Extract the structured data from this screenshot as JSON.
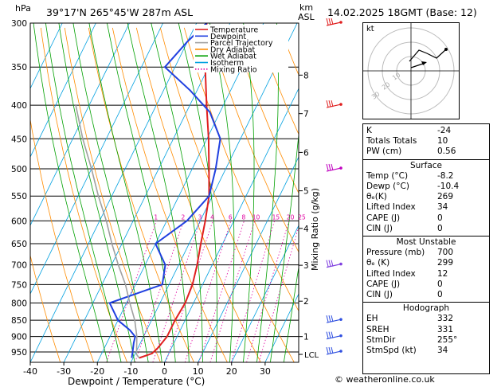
{
  "header": {
    "location": "39°17'N  265°45'W  287m  ASL",
    "datetime": "14.02.2025  18GMT  (Base: 12)"
  },
  "axes": {
    "p_unit": "hPa",
    "km_unit": "km",
    "km_unit2": "ASL",
    "mixing_label": "Mixing Ratio (g/kg)",
    "x_label": "Dewpoint / Temperature (°C)",
    "lcl_label": "LCL"
  },
  "legend": [
    {
      "label": "Temperature",
      "color": "#e02020"
    },
    {
      "label": "Dewpoint",
      "color": "#2040e0"
    },
    {
      "label": "Parcel Trajectory",
      "color": "#a0a0a0"
    },
    {
      "label": "Dry Adiabat",
      "color": "#ff8c00"
    },
    {
      "label": "Wet Adiabat",
      "color": "#00a000"
    },
    {
      "label": "Isotherm",
      "color": "#00a0e0"
    },
    {
      "label": "Mixing Ratio",
      "color": "#e000a0"
    }
  ],
  "chart_data": {
    "type": "line",
    "title": "",
    "xlabel": "Dewpoint / Temperature (°C)",
    "ylabel": "hPa",
    "xlim": [
      -40,
      40
    ],
    "pressure_ticks": [
      300,
      350,
      400,
      450,
      500,
      550,
      600,
      650,
      700,
      750,
      800,
      850,
      900,
      950
    ],
    "x_ticks": [
      -40,
      -30,
      -20,
      -10,
      0,
      10,
      20,
      30
    ],
    "km_ticks": [
      {
        "km": "8",
        "p": 360
      },
      {
        "km": "7",
        "p": 412
      },
      {
        "km": "6",
        "p": 472
      },
      {
        "km": "5",
        "p": 540
      },
      {
        "km": "4",
        "p": 616
      },
      {
        "km": "3",
        "p": 701
      },
      {
        "km": "2",
        "p": 795
      },
      {
        "km": "1",
        "p": 900
      }
    ],
    "lcl_p": 958,
    "mixing_ratio_labels": [
      "1",
      "2",
      "3",
      "4",
      "6",
      "8",
      "10",
      "15",
      "20",
      "25"
    ],
    "series": [
      {
        "name": "Temperature",
        "color": "#e02020",
        "points": [
          [
            -8.2,
            970
          ],
          [
            -5,
            955
          ],
          [
            -4,
            935
          ],
          [
            -3,
            900
          ],
          [
            -3,
            850
          ],
          [
            -2.5,
            800
          ],
          [
            -3,
            750
          ],
          [
            -4.5,
            700
          ],
          [
            -6.5,
            650
          ],
          [
            -8.5,
            600
          ],
          [
            -11,
            550
          ],
          [
            -15,
            500
          ],
          [
            -19.5,
            450
          ],
          [
            -25,
            400
          ],
          [
            -31,
            350
          ],
          [
            -37,
            300
          ]
        ]
      },
      {
        "name": "Dewpoint",
        "color": "#2040e0",
        "points": [
          [
            -10.4,
            970
          ],
          [
            -11,
            950
          ],
          [
            -12,
            920
          ],
          [
            -12.5,
            900
          ],
          [
            -15,
            880
          ],
          [
            -20,
            850
          ],
          [
            -25,
            800
          ],
          [
            -12,
            750
          ],
          [
            -14,
            700
          ],
          [
            -20,
            650
          ],
          [
            -14,
            600
          ],
          [
            -11,
            550
          ],
          [
            -13,
            500
          ],
          [
            -16,
            450
          ],
          [
            -23,
            410
          ],
          [
            -32,
            380
          ],
          [
            -43,
            350
          ],
          [
            -40,
            320
          ],
          [
            -37,
            300
          ]
        ]
      },
      {
        "name": "Parcel Trajectory",
        "color": "#a0a0a0",
        "points": [
          [
            -8.2,
            970
          ],
          [
            -9.5,
            958
          ],
          [
            -12,
            900
          ],
          [
            -15,
            850
          ],
          [
            -19,
            800
          ],
          [
            -23,
            750
          ],
          [
            -28,
            700
          ],
          [
            -33,
            650
          ],
          [
            -38,
            600
          ],
          [
            -44,
            550
          ],
          [
            -50,
            500
          ],
          [
            -57,
            450
          ],
          [
            -64,
            400
          ]
        ]
      }
    ]
  },
  "hodograph": {
    "unit": "kt",
    "rings": [
      "10",
      "20",
      "30"
    ]
  },
  "stats": [
    {
      "k": "K",
      "v": "-24"
    },
    {
      "k": "Totals Totals",
      "v": "10"
    },
    {
      "k": "PW (cm)",
      "v": "0.56"
    }
  ],
  "surface": {
    "title": "Surface",
    "rows": [
      {
        "k": "Temp (°C)",
        "v": "-8.2"
      },
      {
        "k": "Dewp (°C)",
        "v": "-10.4"
      },
      {
        "k": "θₑ(K)",
        "v": "269"
      },
      {
        "k": "Lifted Index",
        "v": "34"
      },
      {
        "k": "CAPE (J)",
        "v": "0"
      },
      {
        "k": "CIN (J)",
        "v": "0"
      }
    ]
  },
  "most_unstable": {
    "title": "Most Unstable",
    "rows": [
      {
        "k": "Pressure (mb)",
        "v": "700"
      },
      {
        "k": "θₑ (K)",
        "v": "299"
      },
      {
        "k": "Lifted Index",
        "v": "12"
      },
      {
        "k": "CAPE (J)",
        "v": "0"
      },
      {
        "k": "CIN (J)",
        "v": "0"
      }
    ]
  },
  "hodograph_stats": {
    "title": "Hodograph",
    "rows": [
      {
        "k": "EH",
        "v": "332"
      },
      {
        "k": "SREH",
        "v": "331"
      },
      {
        "k": "StmDir",
        "v": "255°"
      },
      {
        "k": "StmSpd (kt)",
        "v": "34"
      }
    ]
  },
  "footer": "© weatheronline.co.uk"
}
